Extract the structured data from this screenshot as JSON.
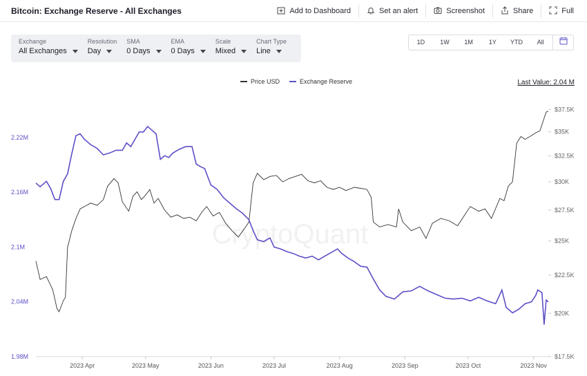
{
  "header": {
    "title": "Bitcoin: Exchange Reserve - All Exchanges",
    "actions": [
      {
        "label": "Add to Dashboard",
        "icon": "add-dashboard-icon"
      },
      {
        "label": "Set an alert",
        "icon": "bell-icon"
      },
      {
        "label": "Screenshot",
        "icon": "camera-icon"
      },
      {
        "label": "Share",
        "icon": "share-icon"
      },
      {
        "label": "Full",
        "icon": "fullscreen-icon"
      }
    ]
  },
  "filters": [
    {
      "label": "Exchange",
      "value": "All Exchanges"
    },
    {
      "label": "Resolution",
      "value": "Day"
    },
    {
      "label": "SMA",
      "value": "0 Days"
    },
    {
      "label": "EMA",
      "value": "0 Days"
    },
    {
      "label": "Scale",
      "value": "Mixed"
    },
    {
      "label": "Chart Type",
      "value": "Line"
    }
  ],
  "ranges": [
    "1D",
    "1W",
    "1M",
    "1Y",
    "YTD",
    "All"
  ],
  "calendar_icon": "calendar-icon",
  "last_value": "Last Value: 2.04 M",
  "watermark": "CryptoQuant",
  "colors": {
    "price": "#333333",
    "reserve": "#5b4fc7",
    "reserve_axis": "#5b4fc7",
    "price_axis": "#666666"
  },
  "chart_data": {
    "type": "line",
    "x_tick_labels": [
      "2023 Apr",
      "2023 May",
      "2023 Jun",
      "2023 Jul",
      "2023 Aug",
      "2023 Sep",
      "2023 Oct",
      "2023 Nov"
    ],
    "x_range": [
      "2023-03-10",
      "2023-11-08"
    ],
    "y_left": {
      "tick_labels": [
        "2.22M",
        "2.16M",
        "2.1M",
        "2.04M",
        "1.98M"
      ],
      "ticks": [
        2.22,
        2.16,
        2.1,
        2.04,
        1.98
      ],
      "range": [
        1.98,
        2.26
      ]
    },
    "y_right": {
      "tick_labels": [
        "$37.5K",
        "$35K",
        "$32.5K",
        "$30K",
        "$27.5K",
        "$25K",
        "$22.5K",
        "$20K",
        "$17.5K"
      ],
      "ticks": [
        37500,
        35000,
        32500,
        30000,
        27500,
        25000,
        22500,
        20000,
        17500
      ],
      "scale": "log",
      "range": [
        17500,
        38500
      ]
    },
    "legend_position": "top-center",
    "grid": false,
    "series": [
      {
        "name": "Price USD",
        "axis": "right",
        "points": [
          [
            "2023-03-10",
            23500
          ],
          [
            "2023-03-12",
            22200
          ],
          [
            "2023-03-15",
            22400
          ],
          [
            "2023-03-18",
            21500
          ],
          [
            "2023-03-20",
            20300
          ],
          [
            "2023-03-21",
            20100
          ],
          [
            "2023-03-23",
            20800
          ],
          [
            "2023-03-24",
            21000
          ],
          [
            "2023-03-25",
            24500
          ],
          [
            "2023-03-27",
            25800
          ],
          [
            "2023-03-29",
            26800
          ],
          [
            "2023-03-31",
            27600
          ],
          [
            "2023-04-03",
            27900
          ],
          [
            "2023-04-05",
            28100
          ],
          [
            "2023-04-08",
            27900
          ],
          [
            "2023-04-11",
            28400
          ],
          [
            "2023-04-13",
            29600
          ],
          [
            "2023-04-16",
            30300
          ],
          [
            "2023-04-18",
            29900
          ],
          [
            "2023-04-20",
            28200
          ],
          [
            "2023-04-23",
            27400
          ],
          [
            "2023-04-25",
            28700
          ],
          [
            "2023-04-27",
            29100
          ],
          [
            "2023-04-29",
            28400
          ],
          [
            "2023-05-01",
            28800
          ],
          [
            "2023-05-03",
            29300
          ],
          [
            "2023-05-05",
            28100
          ],
          [
            "2023-05-07",
            28500
          ],
          [
            "2023-05-10",
            27500
          ],
          [
            "2023-05-13",
            26900
          ],
          [
            "2023-05-16",
            27100
          ],
          [
            "2023-05-19",
            26800
          ],
          [
            "2023-05-22",
            26900
          ],
          [
            "2023-05-25",
            26600
          ],
          [
            "2023-05-28",
            27400
          ],
          [
            "2023-05-30",
            27800
          ],
          [
            "2023-06-02",
            27000
          ],
          [
            "2023-06-05",
            27300
          ],
          [
            "2023-06-08",
            26400
          ],
          [
            "2023-06-11",
            25800
          ],
          [
            "2023-06-14",
            25300
          ],
          [
            "2023-06-17",
            26000
          ],
          [
            "2023-06-19",
            26500
          ],
          [
            "2023-06-21",
            29900
          ],
          [
            "2023-06-23",
            30800
          ],
          [
            "2023-06-26",
            30200
          ],
          [
            "2023-06-29",
            30500
          ],
          [
            "2023-07-02",
            30600
          ],
          [
            "2023-07-05",
            30000
          ],
          [
            "2023-07-08",
            30300
          ],
          [
            "2023-07-11",
            30500
          ],
          [
            "2023-07-14",
            30700
          ],
          [
            "2023-07-17",
            30100
          ],
          [
            "2023-07-20",
            29900
          ],
          [
            "2023-07-23",
            30100
          ],
          [
            "2023-07-26",
            29500
          ],
          [
            "2023-07-29",
            29300
          ],
          [
            "2023-08-01",
            29500
          ],
          [
            "2023-08-04",
            29200
          ],
          [
            "2023-08-08",
            29500
          ],
          [
            "2023-08-11",
            29400
          ],
          [
            "2023-08-14",
            29300
          ],
          [
            "2023-08-16",
            28600
          ],
          [
            "2023-08-17",
            26500
          ],
          [
            "2023-08-20",
            26100
          ],
          [
            "2023-08-24",
            26300
          ],
          [
            "2023-08-28",
            26100
          ],
          [
            "2023-08-29",
            27600
          ],
          [
            "2023-08-31",
            26500
          ],
          [
            "2023-09-04",
            25800
          ],
          [
            "2023-09-08",
            26100
          ],
          [
            "2023-09-11",
            25200
          ],
          [
            "2023-09-14",
            26400
          ],
          [
            "2023-09-18",
            26800
          ],
          [
            "2023-09-22",
            26600
          ],
          [
            "2023-09-26",
            26200
          ],
          [
            "2023-09-29",
            27000
          ],
          [
            "2023-10-02",
            27800
          ],
          [
            "2023-10-06",
            27400
          ],
          [
            "2023-10-09",
            27600
          ],
          [
            "2023-10-12",
            26800
          ],
          [
            "2023-10-16",
            28500
          ],
          [
            "2023-10-18",
            28300
          ],
          [
            "2023-10-20",
            29600
          ],
          [
            "2023-10-22",
            30000
          ],
          [
            "2023-10-24",
            33800
          ],
          [
            "2023-10-26",
            34500
          ],
          [
            "2023-10-28",
            34200
          ],
          [
            "2023-10-31",
            34600
          ],
          [
            "2023-11-02",
            34900
          ],
          [
            "2023-11-04",
            35100
          ],
          [
            "2023-11-06",
            36500
          ],
          [
            "2023-11-07",
            37200
          ],
          [
            "2023-11-08",
            37300
          ]
        ]
      },
      {
        "name": "Exchange Reserve",
        "axis": "left",
        "points": [
          [
            "2023-03-10",
            2.17
          ],
          [
            "2023-03-12",
            2.166
          ],
          [
            "2023-03-15",
            2.172
          ],
          [
            "2023-03-17",
            2.164
          ],
          [
            "2023-03-19",
            2.152
          ],
          [
            "2023-03-21",
            2.152
          ],
          [
            "2023-03-23",
            2.172
          ],
          [
            "2023-03-25",
            2.18
          ],
          [
            "2023-03-27",
            2.202
          ],
          [
            "2023-03-29",
            2.222
          ],
          [
            "2023-03-31",
            2.224
          ],
          [
            "2023-04-02",
            2.218
          ],
          [
            "2023-04-05",
            2.212
          ],
          [
            "2023-04-08",
            2.208
          ],
          [
            "2023-04-11",
            2.201
          ],
          [
            "2023-04-14",
            2.203
          ],
          [
            "2023-04-17",
            2.206
          ],
          [
            "2023-04-20",
            2.206
          ],
          [
            "2023-04-22",
            2.214
          ],
          [
            "2023-04-24",
            2.21
          ],
          [
            "2023-04-26",
            2.218
          ],
          [
            "2023-04-28",
            2.226
          ],
          [
            "2023-04-30",
            2.226
          ],
          [
            "2023-05-02",
            2.232
          ],
          [
            "2023-05-04",
            2.228
          ],
          [
            "2023-05-06",
            2.224
          ],
          [
            "2023-05-08",
            2.196
          ],
          [
            "2023-05-10",
            2.2
          ],
          [
            "2023-05-12",
            2.198
          ],
          [
            "2023-05-14",
            2.203
          ],
          [
            "2023-05-17",
            2.207
          ],
          [
            "2023-05-20",
            2.21
          ],
          [
            "2023-05-23",
            2.21
          ],
          [
            "2023-05-25",
            2.191
          ],
          [
            "2023-05-27",
            2.188
          ],
          [
            "2023-05-29",
            2.186
          ],
          [
            "2023-06-01",
            2.168
          ],
          [
            "2023-06-04",
            2.163
          ],
          [
            "2023-06-07",
            2.154
          ],
          [
            "2023-06-10",
            2.148
          ],
          [
            "2023-06-13",
            2.142
          ],
          [
            "2023-06-16",
            2.137
          ],
          [
            "2023-06-19",
            2.13
          ],
          [
            "2023-06-21",
            2.118
          ],
          [
            "2023-06-23",
            2.108
          ],
          [
            "2023-06-26",
            2.106
          ],
          [
            "2023-06-29",
            2.11
          ],
          [
            "2023-07-01",
            2.1
          ],
          [
            "2023-07-04",
            2.098
          ],
          [
            "2023-07-07",
            2.095
          ],
          [
            "2023-07-10",
            2.093
          ],
          [
            "2023-07-13",
            2.09
          ],
          [
            "2023-07-16",
            2.088
          ],
          [
            "2023-07-19",
            2.09
          ],
          [
            "2023-07-22",
            2.086
          ],
          [
            "2023-07-25",
            2.09
          ],
          [
            "2023-07-28",
            2.094
          ],
          [
            "2023-07-31",
            2.098
          ],
          [
            "2023-08-02",
            2.093
          ],
          [
            "2023-08-05",
            2.088
          ],
          [
            "2023-08-08",
            2.084
          ],
          [
            "2023-08-11",
            2.079
          ],
          [
            "2023-08-14",
            2.078
          ],
          [
            "2023-08-17",
            2.065
          ],
          [
            "2023-08-20",
            2.053
          ],
          [
            "2023-08-23",
            2.046
          ],
          [
            "2023-08-27",
            2.043
          ],
          [
            "2023-08-31",
            2.051
          ],
          [
            "2023-09-04",
            2.052
          ],
          [
            "2023-09-08",
            2.057
          ],
          [
            "2023-09-12",
            2.052
          ],
          [
            "2023-09-16",
            2.048
          ],
          [
            "2023-09-20",
            2.044
          ],
          [
            "2023-09-24",
            2.043
          ],
          [
            "2023-09-28",
            2.044
          ],
          [
            "2023-10-02",
            2.041
          ],
          [
            "2023-10-06",
            2.045
          ],
          [
            "2023-10-10",
            2.041
          ],
          [
            "2023-10-14",
            2.038
          ],
          [
            "2023-10-17",
            2.053
          ],
          [
            "2023-10-19",
            2.034
          ],
          [
            "2023-10-22",
            2.028
          ],
          [
            "2023-10-25",
            2.032
          ],
          [
            "2023-10-28",
            2.038
          ],
          [
            "2023-10-31",
            2.04
          ],
          [
            "2023-11-02",
            2.047
          ],
          [
            "2023-11-03",
            2.053
          ],
          [
            "2023-11-05",
            2.05
          ],
          [
            "2023-11-06",
            2.015
          ],
          [
            "2023-11-07",
            2.042
          ],
          [
            "2023-11-08",
            2.04
          ]
        ]
      }
    ]
  }
}
